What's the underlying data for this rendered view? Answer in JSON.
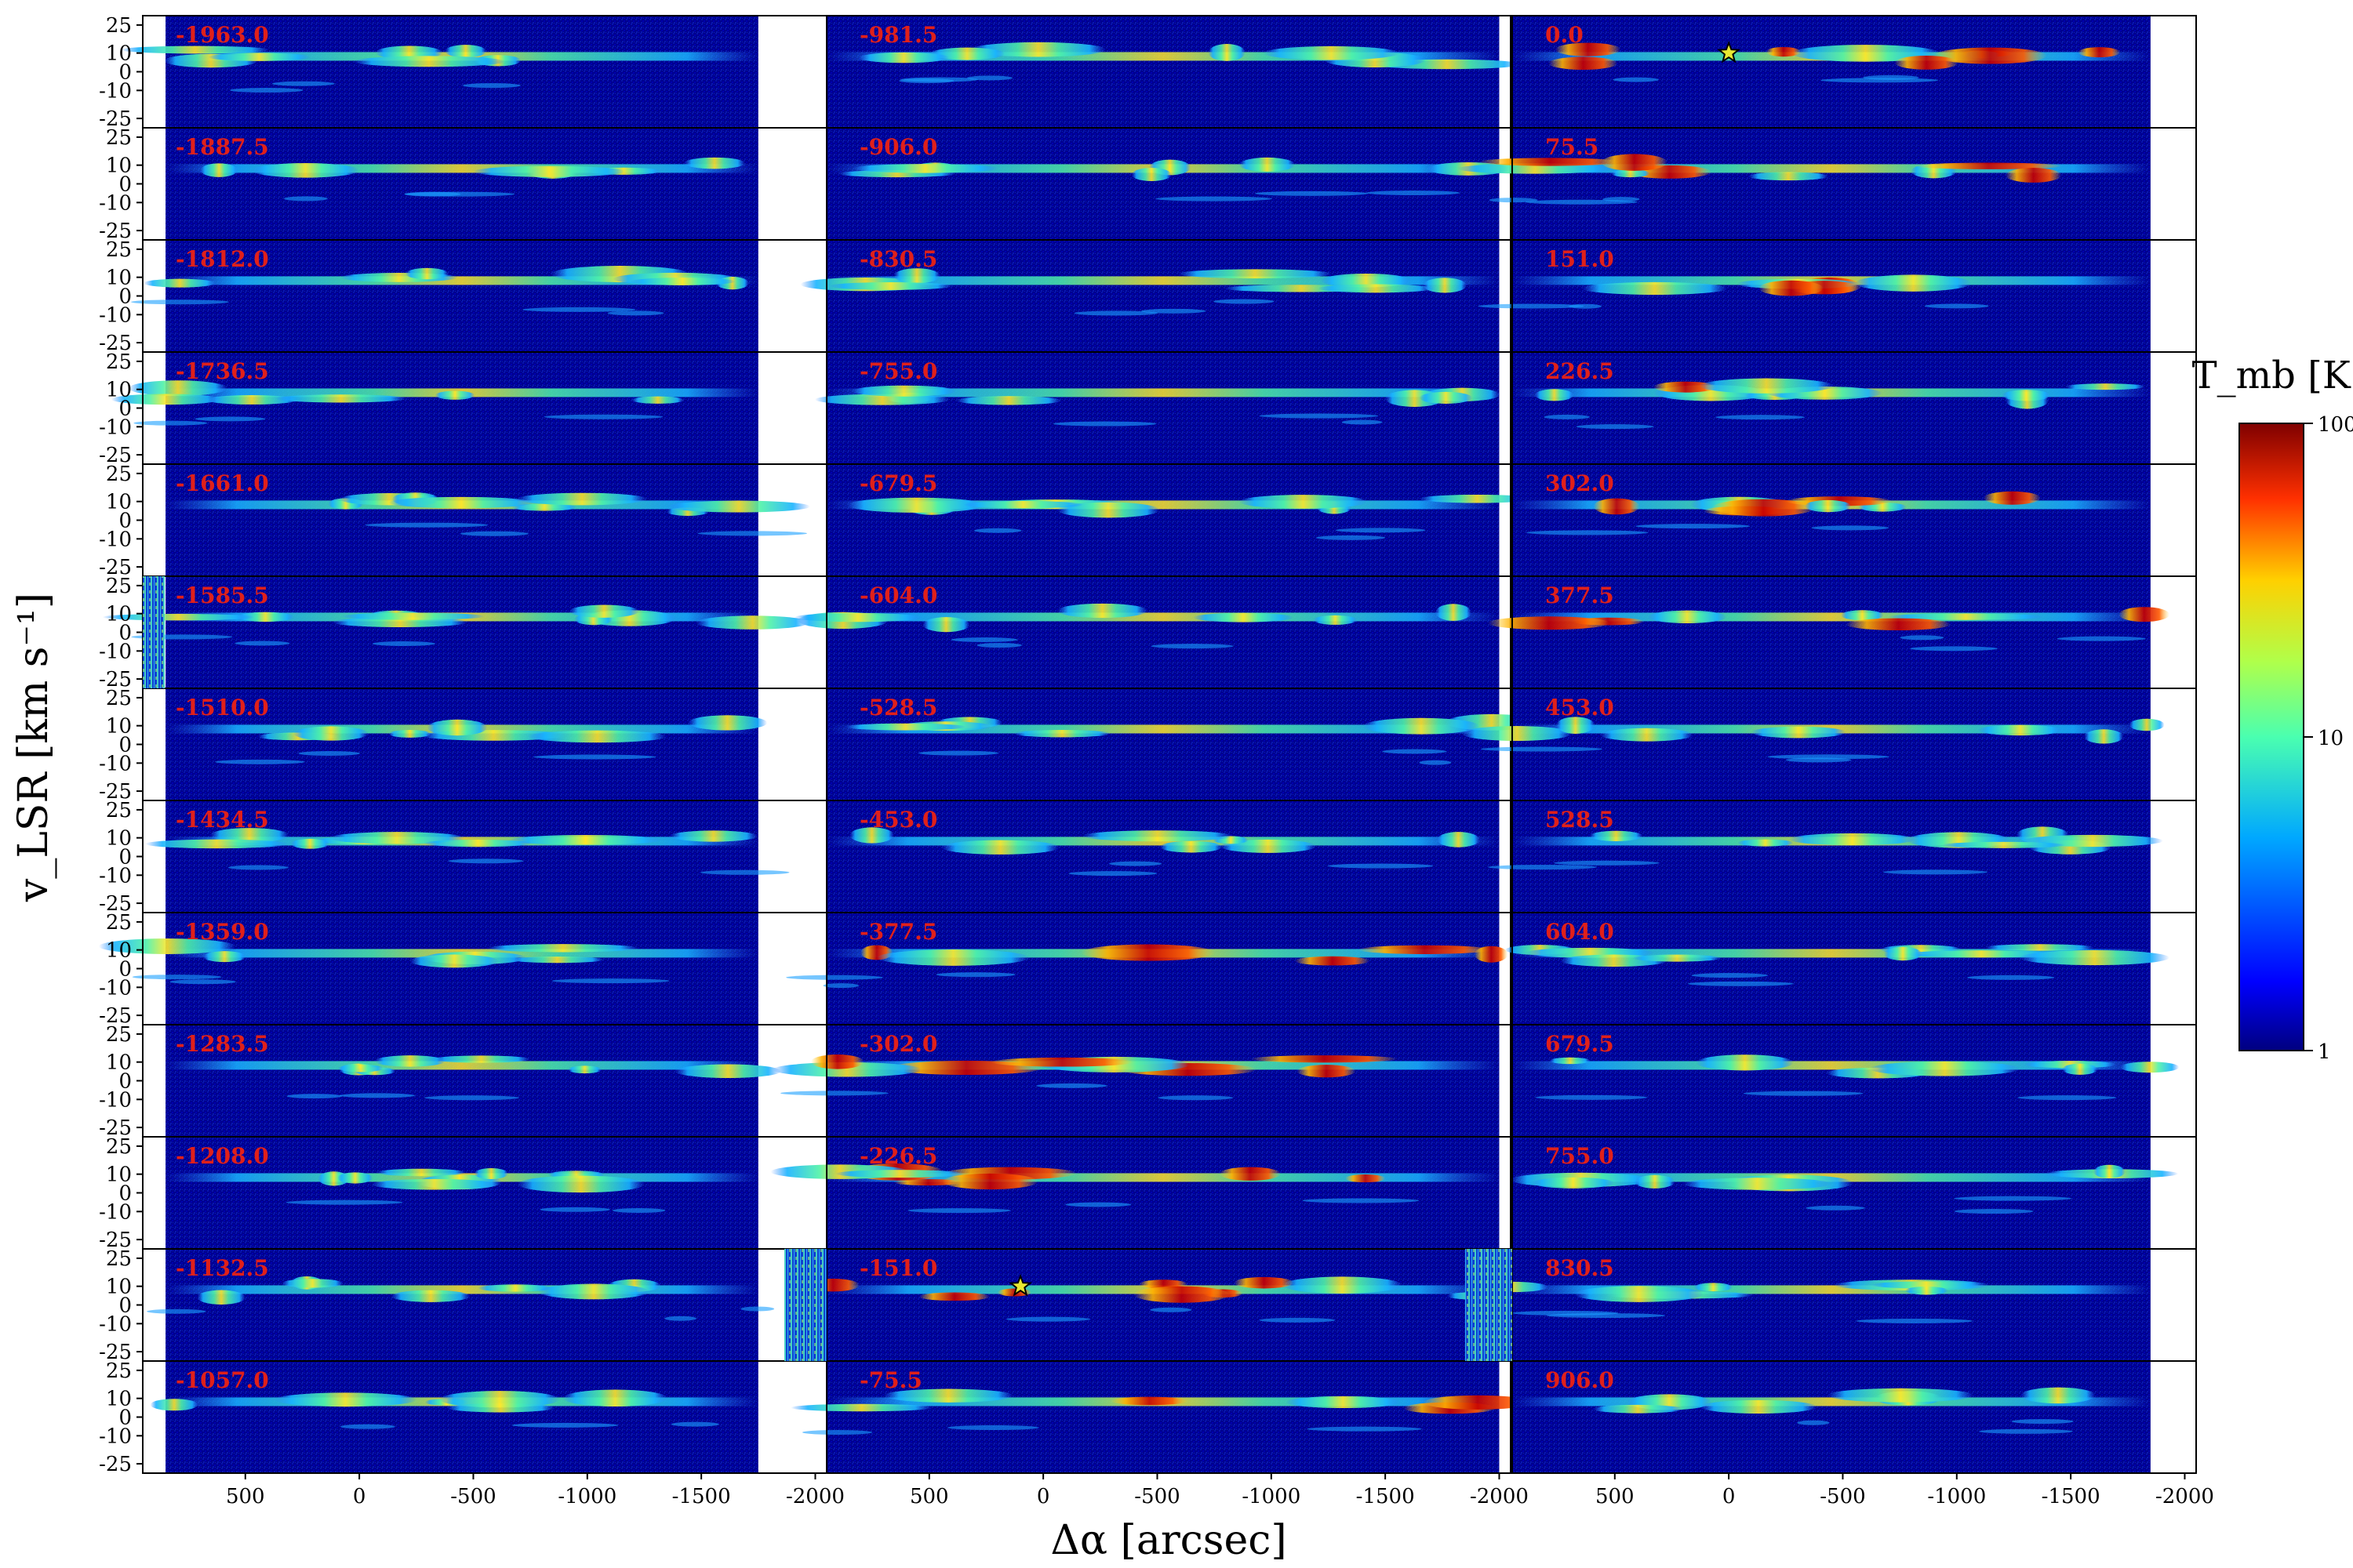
{
  "chart_data": {
    "type": "heatmap",
    "description_kind": "position-velocity diagrams, 3 columns x 13 rows",
    "xlabel": "Δα [arcsec]",
    "ylabel": "v_LSR [km s⁻¹]",
    "colorbar_label": "T_mb [K]",
    "colorbar_scale": "log",
    "colorbar_range": [
      1,
      100
    ],
    "colorbar_ticks": [
      "1",
      "10",
      "100"
    ],
    "colormap": "jet",
    "x_range": [
      950,
      -2050
    ],
    "y_range": [
      -30,
      30
    ],
    "x_ticks": [
      500,
      0,
      -500,
      -1000,
      -1500,
      -2000
    ],
    "x_tick_labels": [
      "500",
      "0",
      "-500",
      "-1000",
      "-1500",
      "-2000"
    ],
    "y_ticks": [
      25,
      10,
      0,
      -10,
      -25
    ],
    "y_tick_labels": [
      "25",
      "10",
      "0",
      "-10",
      "-25"
    ],
    "columns": [
      {
        "offsets": [
          "-1963.0",
          "-1887.5",
          "-1812.0",
          "-1736.5",
          "-1661.0",
          "-1585.5",
          "-1510.0",
          "-1434.5",
          "-1359.0",
          "-1283.5",
          "-1208.0",
          "-1132.5",
          "-1057.0"
        ]
      },
      {
        "offsets": [
          "-981.5",
          "-906.0",
          "-830.5",
          "-755.0",
          "-679.5",
          "-604.0",
          "-528.5",
          "-453.0",
          "-377.5",
          "-302.0",
          "-226.5",
          "-151.0",
          "-75.5"
        ]
      },
      {
        "offsets": [
          "0.0",
          "75.5",
          "151.0",
          "226.5",
          "302.0",
          "377.5",
          "453.0",
          "528.5",
          "604.0",
          "679.5",
          "755.0",
          "830.5",
          "906.0"
        ]
      }
    ],
    "star_markers": [
      {
        "panel_offset": "0.0",
        "x": 0,
        "v": 10
      },
      {
        "panel_offset": "-151.0",
        "x": 100,
        "v": 10
      }
    ],
    "colors": {
      "background": "#00008f",
      "offset_label": "#e0201a",
      "star": "#e8e832"
    }
  }
}
